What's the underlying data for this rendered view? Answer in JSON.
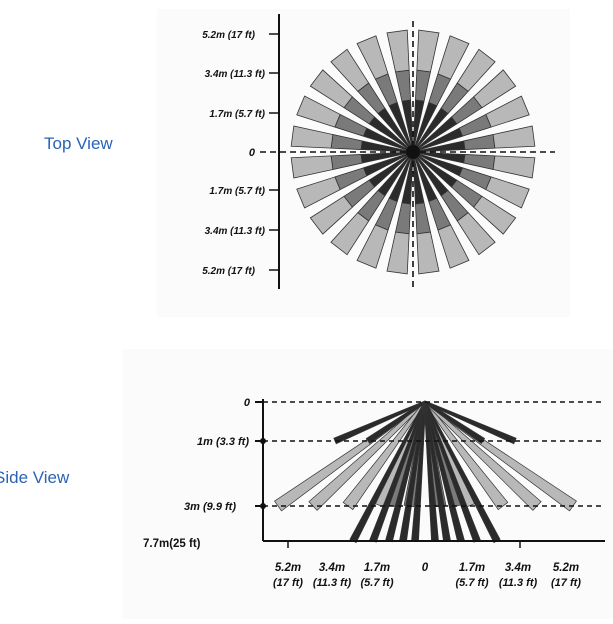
{
  "top_view": {
    "label": "Top View",
    "origin_label": "0",
    "y_ticks": [
      "5.2m (17 ft)",
      "3.4m (11.3 ft)",
      "1.7m (5.7 ft)",
      "1.7m (5.7 ft)",
      "3.4m (11.3 ft)",
      "5.2m (17 ft)"
    ],
    "beam_count": 24
  },
  "side_view": {
    "label": "Side View",
    "y_ticks": [
      "0",
      "1m (3.3 ft)",
      "3m (9.9 ft)",
      "7.7m(25 ft)"
    ],
    "x_ticks": [
      {
        "top": "5.2m",
        "bottom": "(17 ft)"
      },
      {
        "top": "3.4m",
        "bottom": "(11.3 ft)"
      },
      {
        "top": "1.7m",
        "bottom": "(5.7 ft)"
      },
      {
        "top": "0",
        "bottom": ""
      },
      {
        "top": "1.7m",
        "bottom": "(5.7 ft)"
      },
      {
        "top": "3.4m",
        "bottom": "(11.3 ft)"
      },
      {
        "top": "5.2m",
        "bottom": "(17 ft)"
      }
    ]
  },
  "colors": {
    "label_blue": "#2a63b4",
    "beam_light": "#b8b8b8",
    "beam_mid": "#7a7a7a",
    "beam_dark": "#2b2b2b"
  }
}
